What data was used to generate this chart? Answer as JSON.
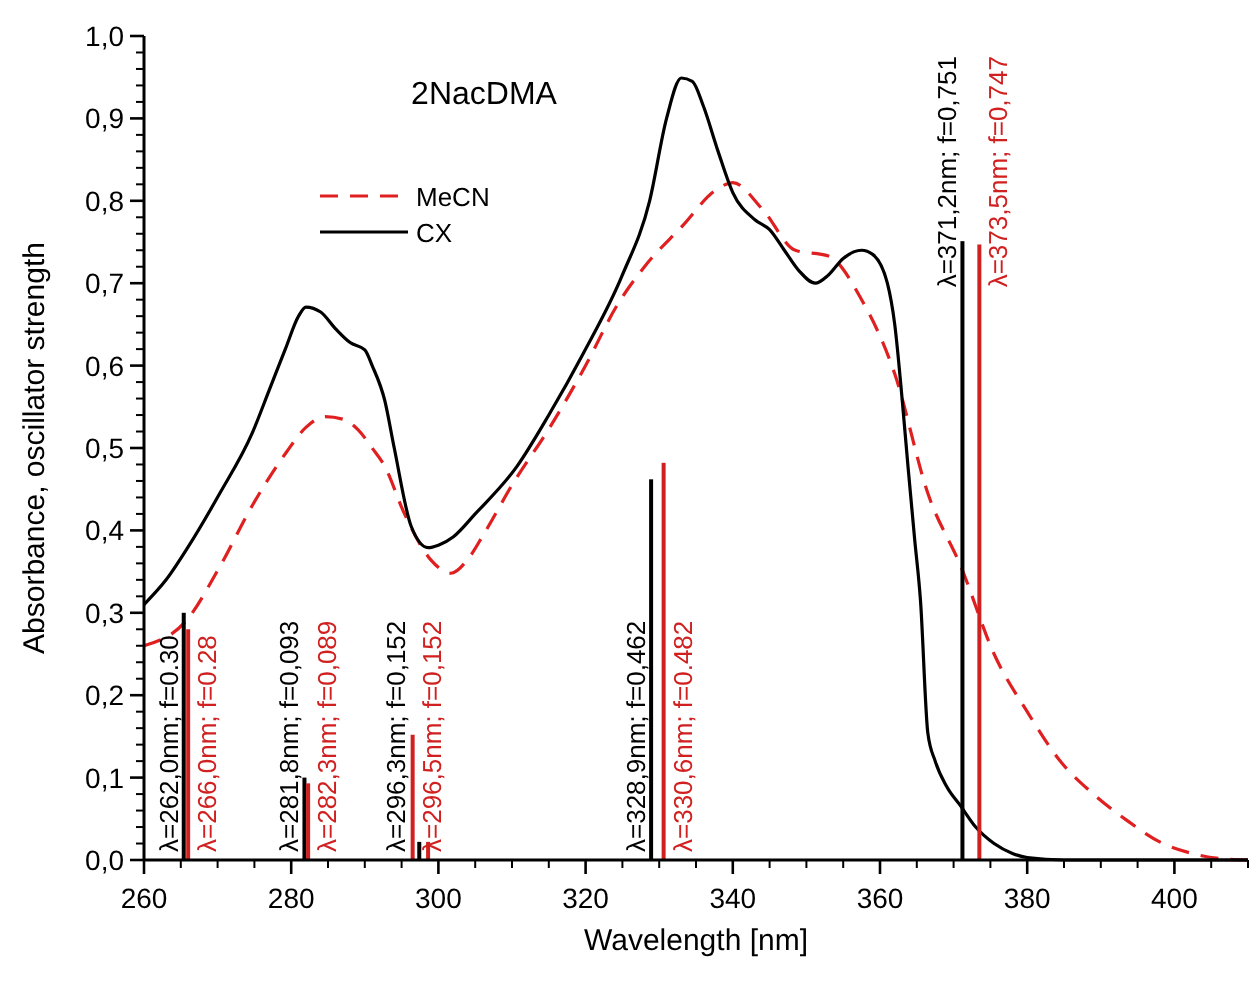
{
  "chart_data": {
    "type": "line",
    "title": "2NacDMA",
    "xlabel": "Wavelength [nm]",
    "ylabel": "Absorbance, oscillator strength",
    "xlim": [
      260,
      410
    ],
    "xticks": [
      260,
      280,
      300,
      320,
      340,
      360,
      380,
      400
    ],
    "ylim": [
      0,
      1
    ],
    "yticks": [
      {
        "value": 0,
        "label": "0,0"
      },
      {
        "value": 0.1,
        "label": "0,1"
      },
      {
        "value": 0.2,
        "label": "0,2"
      },
      {
        "value": 0.3,
        "label": "0,3"
      },
      {
        "value": 0.4,
        "label": "0,4"
      },
      {
        "value": 0.5,
        "label": "0,5"
      },
      {
        "value": 0.6,
        "label": "0,6"
      },
      {
        "value": 0.7,
        "label": "0,7"
      },
      {
        "value": 0.8,
        "label": "0,8"
      },
      {
        "value": 0.9,
        "label": "0,9"
      },
      {
        "value": 1,
        "label": "1,0"
      }
    ],
    "grid": false,
    "legend": "top left",
    "series": [
      {
        "name": "MeCN",
        "line_style": "dashed",
        "color": "#e02020",
        "x": [
          260,
          265.7,
          270.3,
          274.7,
          279.2,
          282,
          284.6,
          287,
          289.1,
          291,
          292.7,
          295.4,
          299,
          301.7,
          304,
          306.2,
          310,
          315.2,
          320,
          324.2,
          328,
          333.1,
          337.7,
          340,
          344,
          348.5,
          353,
          357.5,
          362,
          366.5,
          371,
          375.5,
          380,
          384.4,
          389,
          393.4,
          398,
          402.4,
          406,
          410
        ],
        "values": [
          0.26,
          0.29,
          0.356,
          0.43,
          0.493,
          0.525,
          0.538,
          0.535,
          0.522,
          0.5,
          0.478,
          0.42,
          0.364,
          0.348,
          0.365,
          0.396,
          0.455,
          0.526,
          0.6,
          0.672,
          0.72,
          0.769,
          0.813,
          0.822,
          0.79,
          0.74,
          0.733,
          0.68,
          0.59,
          0.445,
          0.356,
          0.25,
          0.18,
          0.121,
          0.08,
          0.049,
          0.022,
          0.008,
          0.002,
          0
        ]
      },
      {
        "name": "CX",
        "line_style": "solid",
        "color": "#000000",
        "x": [
          260,
          263,
          266,
          270.3,
          274.7,
          277,
          279.2,
          281,
          282,
          284,
          286,
          288,
          290,
          291,
          292.7,
          294,
          296.3,
          298.6,
          300,
          302,
          305,
          310.7,
          315,
          319.7,
          325,
          328.7,
          331,
          333,
          334.5,
          336,
          338,
          340,
          343,
          345,
          347,
          349,
          351.2,
          353,
          355,
          357.5,
          359,
          361,
          362,
          363,
          363.8,
          364.7,
          365.5,
          366.5,
          367.5,
          369,
          371,
          373,
          375.5,
          378,
          380,
          385,
          410
        ],
        "values": [
          0.31,
          0.34,
          0.38,
          0.445,
          0.518,
          0.57,
          0.62,
          0.66,
          0.671,
          0.665,
          0.645,
          0.628,
          0.619,
          0.6,
          0.558,
          0.5,
          0.405,
          0.379,
          0.382,
          0.392,
          0.42,
          0.478,
          0.54,
          0.615,
          0.71,
          0.8,
          0.9,
          0.949,
          0.945,
          0.915,
          0.86,
          0.81,
          0.777,
          0.765,
          0.74,
          0.715,
          0.7,
          0.71,
          0.73,
          0.74,
          0.735,
          0.7,
          0.65,
          0.56,
          0.478,
          0.39,
          0.315,
          0.154,
          0.12,
          0.09,
          0.065,
          0.04,
          0.02,
          0.008,
          0.003,
          0,
          0
        ]
      },
      {
        "type": "bar",
        "color": "#000000",
        "x": [
          265.4,
          281.8,
          296.3,
          297.4,
          328.9,
          371.2
        ],
        "values": [
          0.3,
          0.1,
          null,
          0.022,
          0.462,
          0.751
        ],
        "value_labels": [
          "λ=262,0nm; f=0.30",
          "λ=281,8nm; f=0,093",
          "λ=296,3nm; f=0,152",
          null,
          "λ=328,9nm; f=0,462",
          "λ=371,2nm; f=0,751"
        ]
      },
      {
        "type": "bar",
        "color": "#d02020",
        "x": [
          266,
          282.3,
          296.5,
          298.6,
          330.6,
          373.5
        ],
        "values": [
          0.28,
          0.093,
          0.152,
          0.022,
          0.482,
          0.747
        ],
        "value_labels": [
          "λ=266,0nm; f=0.28",
          "λ=282,3nm; f=0,089",
          "λ=296,5nm; f=0,152",
          null,
          "λ=330,6nm; f=0.482",
          "λ=373,5nm; f=0,747"
        ]
      }
    ]
  }
}
